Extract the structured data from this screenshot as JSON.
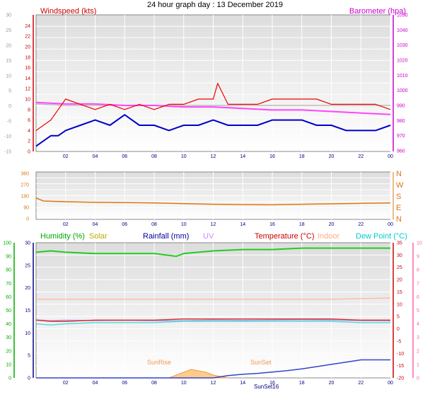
{
  "title": "24 hour graph day : 13 December 2019",
  "chart_data": [
    {
      "type": "line",
      "panel": "wind-baro",
      "x_ticks": [
        "02",
        "04",
        "06",
        "08",
        "10",
        "12",
        "14",
        "16",
        "18",
        "20",
        "22",
        "00"
      ],
      "left_axis": {
        "label": "Windspeed (kts)",
        "color": "#cc0000",
        "range": [
          0,
          25
        ],
        "ticks": [
          0,
          2,
          4,
          6,
          8,
          10,
          12,
          14,
          16,
          18,
          20,
          22,
          24
        ]
      },
      "right_axis": {
        "label": "Barometer (hpa)",
        "color": "#cc00cc",
        "range": [
          960,
          1050
        ],
        "ticks": [
          960,
          970,
          980,
          990,
          1000,
          1010,
          1020,
          1030,
          1040,
          1050
        ]
      },
      "outer_left_axis": {
        "color": "#999999",
        "range": [
          -15,
          30
        ],
        "ticks": [
          -15,
          -10,
          -5,
          0,
          5,
          10,
          15,
          20,
          25,
          30
        ]
      },
      "series": [
        {
          "name": "Windspeed (kts)",
          "color": "#ee0000",
          "x": [
            0,
            1,
            1.5,
            2,
            3,
            4,
            5,
            6,
            7,
            8,
            9,
            10,
            11,
            12,
            12.3,
            13,
            14,
            15,
            16,
            17,
            18,
            19,
            20,
            21,
            22,
            23,
            24
          ],
          "y": [
            4,
            6,
            8,
            10,
            9,
            8,
            9,
            8,
            9,
            8,
            9,
            9,
            10,
            10,
            13,
            9,
            9,
            9,
            10,
            10,
            10,
            10,
            9,
            9,
            9,
            9,
            8
          ]
        },
        {
          "name": "Windspeed avg",
          "color": "#0000cc",
          "x": [
            0,
            0.5,
            1,
            1.5,
            2,
            3,
            4,
            5,
            6,
            7,
            8,
            9,
            10,
            11,
            12,
            13,
            14,
            15,
            16,
            17,
            18,
            19,
            20,
            21,
            22,
            23,
            24
          ],
          "y": [
            1,
            2,
            3,
            3,
            4,
            5,
            6,
            5,
            7,
            5,
            5,
            4,
            5,
            5,
            6,
            5,
            5,
            5,
            6,
            6,
            6,
            5,
            5,
            4,
            4,
            4,
            5
          ]
        },
        {
          "name": "Barometer (hpa)",
          "color": "#ff44ff",
          "x": [
            0,
            2,
            4,
            6,
            8,
            10,
            12,
            14,
            16,
            18,
            20,
            22,
            24
          ],
          "y": [
            992,
            991,
            991,
            990,
            990,
            989,
            989,
            988,
            987,
            987,
            986,
            985,
            984
          ]
        },
        {
          "name": "Wind gust",
          "color": "#bbbbbb",
          "x": [
            0,
            2,
            4,
            6,
            8,
            10,
            12,
            14,
            16,
            18,
            20,
            22,
            24
          ],
          "y": [
            991,
            990,
            990,
            990,
            990,
            990,
            990,
            990,
            990,
            990,
            990,
            990,
            990
          ]
        }
      ]
    },
    {
      "type": "line",
      "panel": "wind-direction",
      "x_ticks": [
        "02",
        "04",
        "06",
        "08",
        "10",
        "12",
        "14",
        "16",
        "18",
        "20",
        "22",
        "00"
      ],
      "left_axis": {
        "range": [
          0,
          360
        ],
        "ticks": [
          0,
          90,
          180,
          270,
          360
        ]
      },
      "right_labels": [
        "N",
        "W",
        "S",
        "E",
        "N"
      ],
      "series": [
        {
          "name": "Wind direction",
          "color": "#dd7711",
          "x": [
            0,
            0.5,
            2,
            4,
            6,
            8,
            10,
            12,
            14,
            16,
            18,
            20,
            22,
            24
          ],
          "y": [
            165,
            140,
            135,
            130,
            128,
            125,
            120,
            115,
            112,
            110,
            115,
            118,
            122,
            125
          ]
        }
      ]
    },
    {
      "type": "line",
      "panel": "weather",
      "x_ticks": [
        "02",
        "04",
        "06",
        "08",
        "10",
        "12",
        "14",
        "16",
        "18",
        "20",
        "22",
        "00"
      ],
      "legend": [
        {
          "label": "Humidity (%)",
          "color": "#00aa00"
        },
        {
          "label": "Solar",
          "color": "#bbaa00"
        },
        {
          "label": "Rainfall (mm)",
          "color": "#000099"
        },
        {
          "label": "UV",
          "color": "#cc88ff"
        },
        {
          "label": "Temperature (°C)",
          "color": "#cc0000"
        },
        {
          "label": "Indoor",
          "color": "#ffaa88"
        },
        {
          "label": "Dew Point (°C)",
          "color": "#00cccc"
        }
      ],
      "left_axis_humidity": {
        "range": [
          0,
          100
        ],
        "ticks": [
          0,
          10,
          20,
          30,
          40,
          50,
          60,
          70,
          80,
          90,
          100
        ]
      },
      "left_axis_rain": {
        "range": [
          0,
          30
        ],
        "ticks": [
          0,
          5,
          10,
          15,
          20,
          25,
          30
        ]
      },
      "right_axis_temp": {
        "range": [
          -20,
          35
        ],
        "ticks": [
          -20,
          -15,
          -10,
          -5,
          0,
          5,
          10,
          15,
          20,
          25,
          30,
          35
        ]
      },
      "right_axis_pink": {
        "range": [
          0,
          10
        ],
        "ticks": [
          0,
          1,
          2,
          3,
          4,
          5,
          6,
          7,
          8,
          9,
          10
        ]
      },
      "annotations": [
        "SunRise",
        "SunSet",
        "SunSet16"
      ],
      "series": [
        {
          "name": "Humidity",
          "color": "#22cc22",
          "x": [
            0,
            1,
            2,
            4,
            6,
            8,
            9.5,
            10,
            11,
            12,
            14,
            16,
            18,
            20,
            22,
            24
          ],
          "y": [
            93,
            94,
            93,
            92,
            92,
            92,
            90,
            92,
            93,
            94,
            95,
            95,
            96,
            96,
            96,
            96
          ]
        },
        {
          "name": "Indoor",
          "color": "#ffbbaa",
          "x": [
            0,
            4,
            8,
            12,
            16,
            20,
            24
          ],
          "y": [
            12,
            12,
            12,
            12,
            12,
            12,
            12.5
          ]
        },
        {
          "name": "Temperature",
          "color": "#dd3333",
          "x": [
            0,
            1,
            2,
            4,
            6,
            8,
            10,
            12,
            14,
            16,
            18,
            20,
            22,
            24
          ],
          "y": [
            3.5,
            3,
            3,
            3.5,
            3.5,
            3.5,
            4,
            4,
            4,
            4,
            4,
            4,
            3.5,
            3.5
          ]
        },
        {
          "name": "Dew Point",
          "color": "#55dddd",
          "x": [
            0,
            1,
            2,
            4,
            6,
            8,
            10,
            12,
            14,
            16,
            18,
            20,
            22,
            24
          ],
          "y": [
            2,
            1.5,
            2,
            2.5,
            2.5,
            2.5,
            3,
            3,
            3,
            3,
            3,
            3,
            2.5,
            2.5
          ]
        },
        {
          "name": "UV",
          "color": "#aaaaee",
          "x": [
            0,
            1,
            2,
            4,
            6,
            8,
            10,
            12,
            14,
            16,
            18,
            20,
            22,
            24
          ],
          "y": [
            3.6,
            3.3,
            3.5,
            3.3,
            3.4,
            3.2,
            3.3,
            3.5,
            3.4,
            3.5,
            3.6,
            3.5,
            3.3,
            3.2
          ]
        },
        {
          "name": "Rainfall",
          "color": "#3344cc",
          "x": [
            0,
            2,
            4,
            6,
            8,
            10,
            11,
            12,
            13,
            14,
            15,
            16,
            17,
            18,
            19,
            20,
            21,
            22,
            23,
            24
          ],
          "y": [
            0,
            0,
            0,
            0,
            0,
            0,
            0,
            0,
            0.5,
            0.8,
            1,
            1.3,
            1.6,
            2,
            2.5,
            3,
            3.5,
            4,
            4,
            4
          ]
        },
        {
          "name": "Solar",
          "color": "#ffbb66",
          "x": [
            9,
            9.5,
            10,
            10.5,
            11,
            11.5,
            12,
            12.5,
            13
          ],
          "y": [
            0,
            1,
            2,
            3,
            2.5,
            2,
            1,
            0.5,
            0
          ]
        }
      ]
    }
  ]
}
